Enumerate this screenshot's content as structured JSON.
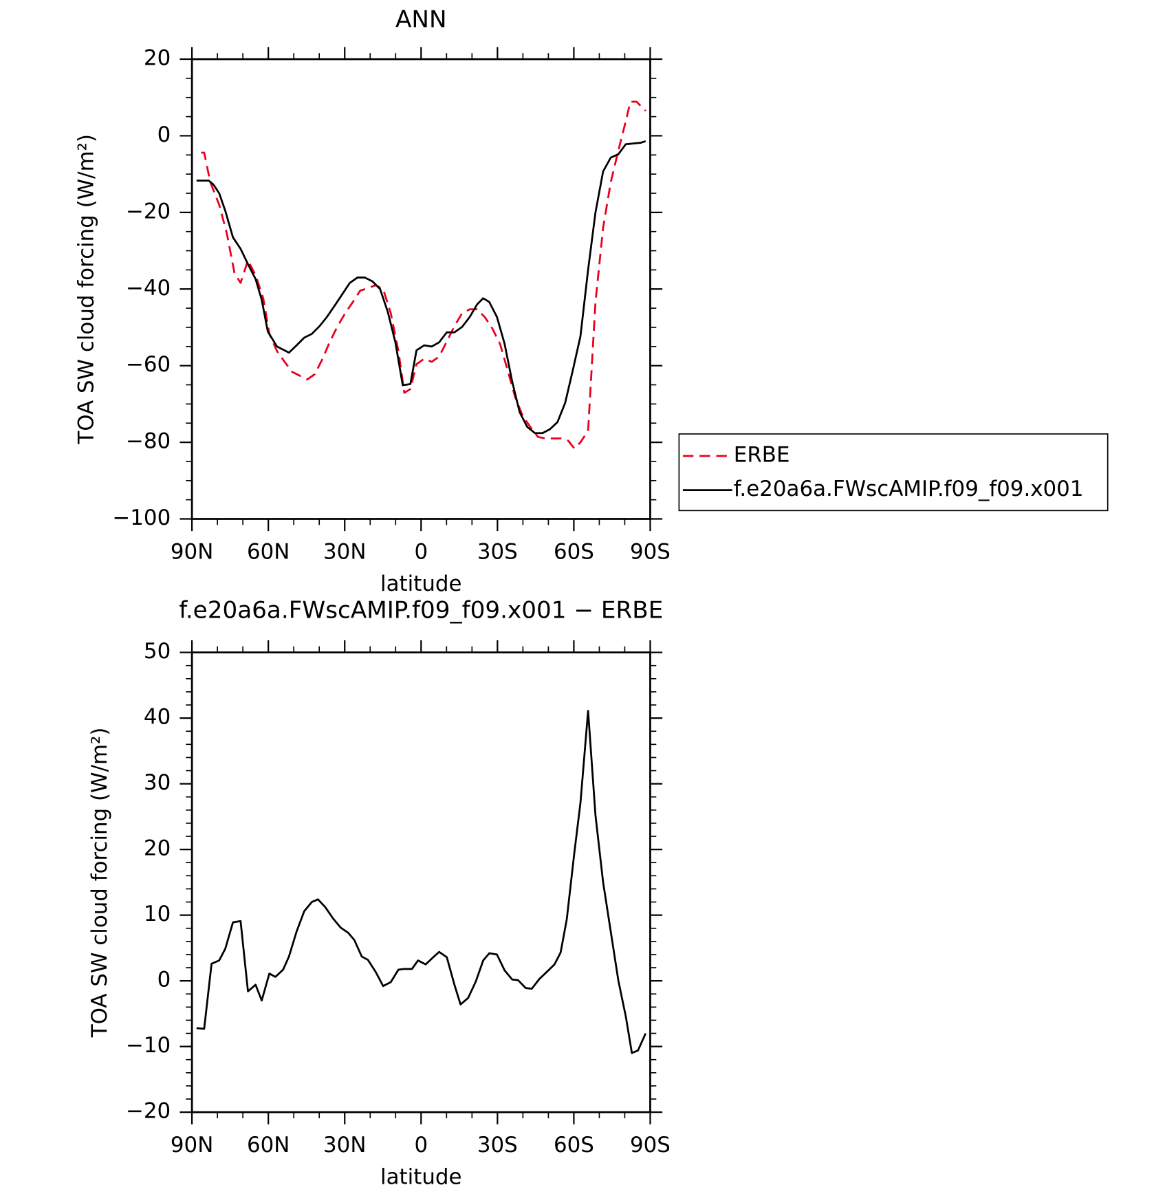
{
  "chart_data": [
    {
      "type": "line",
      "title": "ANN",
      "xlabel": "latitude",
      "ylabel": "TOA SW cloud forcing (W/m²)",
      "xlim": [
        90,
        -90
      ],
      "xticks": [
        {
          "value": 90,
          "label": "90N"
        },
        {
          "value": 60,
          "label": "60N"
        },
        {
          "value": 30,
          "label": "30N"
        },
        0,
        {
          "value": -30,
          "label": "30S"
        },
        {
          "value": -60,
          "label": "60S"
        },
        {
          "value": -90,
          "label": "90S"
        }
      ],
      "minor_xticks": [
        80,
        70,
        50,
        40,
        20,
        10,
        -10,
        -20,
        -40,
        -50,
        -70,
        -80
      ],
      "ylim": [
        -100,
        20
      ],
      "yticks": [
        {
          "value": -100,
          "label": "−100"
        },
        {
          "value": -80,
          "label": "−80"
        },
        {
          "value": -60,
          "label": "−60"
        },
        {
          "value": -40,
          "label": "−40"
        },
        {
          "value": -20,
          "label": "−20"
        },
        0,
        20
      ],
      "minor_yticks": [
        -95,
        -90,
        -85,
        -75,
        -70,
        -65,
        -55,
        -50,
        -45,
        -35,
        -30,
        -25,
        -15,
        -10,
        -5,
        5,
        10,
        15
      ],
      "legend": "outside-right",
      "series": [
        {
          "name": "ERBE",
          "color": "#e8001c",
          "line_style": "dashed",
          "x": [
            86.4,
            85.2,
            82.8,
            79.3,
            76.3,
            73.3,
            70.9,
            68,
            65,
            62,
            59.6,
            56.6,
            53.6,
            50.7,
            47.7,
            44.7,
            41.7,
            38.7,
            35.8,
            32.8,
            29.8,
            26.8,
            23.9,
            20.9,
            17.9,
            14.9,
            11.9,
            8.9,
            6.6,
            4.2,
            1.8,
            -1.2,
            -4.2,
            -7.1,
            -10.1,
            -13.1,
            -16.1,
            -19.1,
            -22,
            -25,
            -28,
            -31,
            -34,
            -36.9,
            -39.9,
            -42.9,
            -45.9,
            -48.9,
            -51.8,
            -54.8,
            -57.8,
            -60.2,
            -62.6,
            -65.6,
            -68.5,
            -71.5,
            -74.5,
            -77.5,
            -80.4,
            -82.2,
            -84.6,
            -88.2
          ],
          "values": [
            -4.4,
            -4.4,
            -12.1,
            -18,
            -25.5,
            -35.8,
            -38.4,
            -32.5,
            -36.4,
            -42.4,
            -51.7,
            -56.2,
            -59,
            -61.6,
            -62.6,
            -63.6,
            -62.2,
            -58.2,
            -53.7,
            -49.7,
            -46.3,
            -43.4,
            -40.4,
            -39.8,
            -39,
            -40,
            -46.3,
            -56.2,
            -67.1,
            -66.1,
            -59.6,
            -58.2,
            -59,
            -57.6,
            -53.7,
            -49.7,
            -46.3,
            -45.3,
            -45.3,
            -47.3,
            -50.3,
            -54.3,
            -61.2,
            -68.1,
            -73.1,
            -76,
            -78.6,
            -79,
            -79,
            -79,
            -79.6,
            -81.6,
            -80,
            -77,
            -43.4,
            -24,
            -12.1,
            -3.8,
            3.8,
            8.9,
            8.9,
            6.5
          ]
        },
        {
          "name": "f.e20a6a.FWscAMIP.f09_f09.x001",
          "color": "#000000",
          "line_style": "solid",
          "x": [
            88.2,
            83.4,
            81.6,
            79.3,
            76.9,
            73.9,
            70.9,
            68,
            65,
            62.6,
            60.2,
            56.6,
            51.9,
            48.9,
            45.9,
            42.9,
            39.9,
            37,
            34,
            31,
            28,
            25,
            22.1,
            19.1,
            16.1,
            13.1,
            10.1,
            7.2,
            4.2,
            1.8,
            -1.2,
            -4.2,
            -7.1,
            -10.1,
            -13.1,
            -16.1,
            -19.1,
            -22,
            -24.4,
            -26.8,
            -29.8,
            -32.8,
            -35.8,
            -38.7,
            -41.7,
            -44.7,
            -47.7,
            -50.6,
            -53.6,
            -56.6,
            -59.6,
            -62.6,
            -65.6,
            -68.5,
            -71.5,
            -74.5,
            -77.5,
            -80.4,
            -83.4,
            -86.4,
            -88.2
          ],
          "values": [
            -11.7,
            -11.7,
            -12.7,
            -15,
            -19.6,
            -26.5,
            -29.5,
            -33.5,
            -37.4,
            -42.8,
            -51.1,
            -55,
            -56.6,
            -54.7,
            -52.7,
            -51.7,
            -49.7,
            -47.3,
            -44.4,
            -41.4,
            -38.4,
            -37,
            -37,
            -38,
            -40,
            -45.9,
            -53.9,
            -65.1,
            -64.8,
            -56,
            -54.7,
            -55,
            -53.9,
            -51.3,
            -51.3,
            -49.9,
            -47.3,
            -44,
            -42.4,
            -43.4,
            -47.3,
            -54.3,
            -64.2,
            -72.1,
            -76,
            -77.6,
            -77.6,
            -76.6,
            -74.7,
            -69.7,
            -61.2,
            -52.3,
            -35,
            -20,
            -9.3,
            -5.7,
            -4.8,
            -2.2,
            -2,
            -1.8,
            -1.4
          ]
        }
      ]
    },
    {
      "type": "line",
      "title": "f.e20a6a.FWscAMIP.f09_f09.x001 − ERBE",
      "xlabel": "latitude",
      "ylabel": "TOA SW cloud forcing (W/m²)",
      "xlim": [
        90,
        -90
      ],
      "xticks": [
        {
          "value": 90,
          "label": "90N"
        },
        {
          "value": 60,
          "label": "60N"
        },
        {
          "value": 30,
          "label": "30N"
        },
        0,
        {
          "value": -30,
          "label": "30S"
        },
        {
          "value": -60,
          "label": "60S"
        },
        {
          "value": -90,
          "label": "90S"
        }
      ],
      "minor_xticks": [
        80,
        70,
        50,
        40,
        20,
        10,
        -10,
        -20,
        -40,
        -50,
        -70,
        -80
      ],
      "ylim": [
        -20,
        50
      ],
      "yticks": [
        {
          "value": -20,
          "label": "−20"
        },
        {
          "value": -10,
          "label": "−10"
        },
        0,
        10,
        20,
        30,
        40,
        50
      ],
      "minor_yticks": [
        -18,
        -16,
        -14,
        -12,
        -8,
        -6,
        -4,
        -2,
        2,
        4,
        6,
        8,
        12,
        14,
        16,
        18,
        22,
        24,
        26,
        28,
        32,
        34,
        36,
        38,
        42,
        44,
        46,
        48
      ],
      "series": [
        {
          "color": "#000000",
          "line_style": "solid",
          "x": [
            88.2,
            85.2,
            82.3,
            79.3,
            76.9,
            73.9,
            70.9,
            68,
            65,
            62.6,
            59.6,
            57.2,
            54.2,
            51.9,
            48.9,
            45.9,
            42.9,
            40.5,
            37.6,
            34.6,
            31.6,
            28.6,
            26.2,
            23.3,
            20.9,
            17.9,
            14.9,
            11.9,
            8.9,
            6.6,
            3.6,
            1.2,
            -1.8,
            -4.8,
            -7.1,
            -10.1,
            -13.1,
            -15.5,
            -18.5,
            -21.5,
            -24.4,
            -26.8,
            -29.8,
            -32.8,
            -35.8,
            -38.1,
            -41.1,
            -43.5,
            -46.5,
            -49.5,
            -52.4,
            -54.8,
            -57.2,
            -60.2,
            -62.6,
            -65.6,
            -68.5,
            -71.5,
            -74.5,
            -77.5,
            -80.4,
            -82.8,
            -85.2,
            -88.2
          ],
          "values": [
            -7.2,
            -7.3,
            2.6,
            3.1,
            4.9,
            8.9,
            9.1,
            -1.6,
            -0.6,
            -3,
            1.1,
            0.6,
            1.7,
            3.7,
            7.5,
            10.6,
            12,
            12.4,
            11.2,
            9.5,
            8.1,
            7.3,
            6.2,
            3.7,
            3.2,
            1.4,
            -0.8,
            -0.2,
            1.7,
            1.8,
            1.8,
            3.1,
            2.5,
            3.6,
            4.4,
            3.6,
            -0.6,
            -3.6,
            -2.6,
            -0.1,
            3.1,
            4.2,
            4,
            1.6,
            0.2,
            0.1,
            -1.1,
            -1.2,
            0.3,
            1.4,
            2.5,
            4.3,
            9.3,
            19.5,
            27.1,
            41.1,
            25.2,
            15,
            7.5,
            0,
            -5.4,
            -11,
            -10.6,
            -8
          ]
        }
      ]
    }
  ]
}
